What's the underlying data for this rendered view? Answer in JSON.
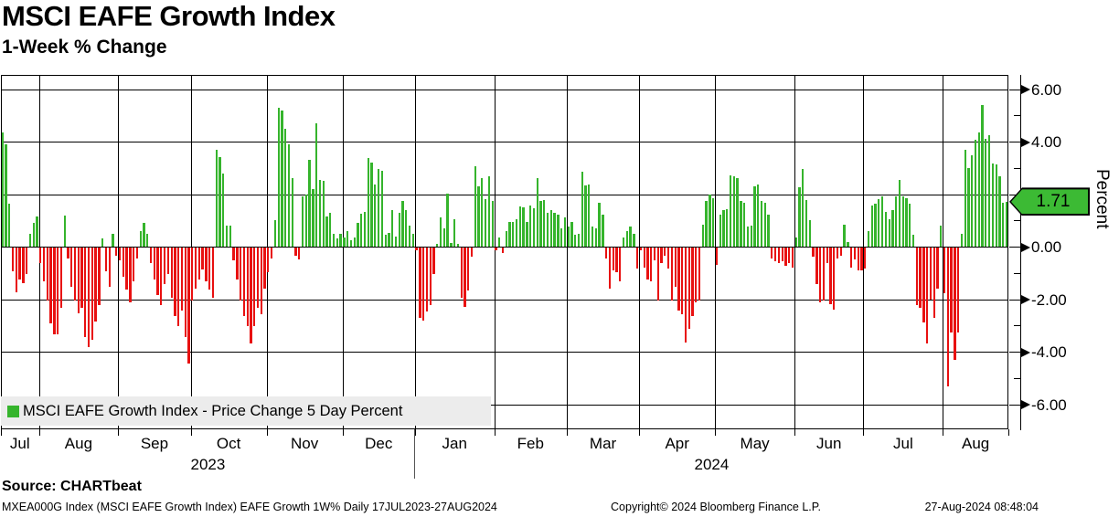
{
  "header": {
    "title": "MSCI EAFE Growth Index",
    "subtitle": "1-Week % Change"
  },
  "legend": {
    "label": "MSCI EAFE Growth Index - Price Change 5 Day Percent",
    "swatch_color": "#35b42c"
  },
  "colors": {
    "positive_bar": "#35b42c",
    "negative_bar": "#e81010",
    "grid": "#000000",
    "legend_bg": "#ececec",
    "tag_fill": "#3cba34"
  },
  "y_axis": {
    "axis_title": "Percent",
    "tick_labels": [
      "6.00",
      "4.00",
      "2.00",
      "0.00",
      "-2.00",
      "-4.00",
      "-6.00"
    ],
    "tick_values": [
      6,
      4,
      2,
      0,
      -2,
      -4,
      -6
    ],
    "minor_tick_values": [
      5,
      3,
      1,
      -1,
      -3,
      -5
    ],
    "last_value_label": "1.71"
  },
  "x_axis": {
    "year_groups": [
      {
        "label": "2023",
        "month_count": 6
      },
      {
        "label": "2024",
        "month_count": 8
      }
    ]
  },
  "footer": {
    "source": "Source: CHARTbeat",
    "left": "MXEA000G Index (MSCI EAFE Growth Index) EAFE Growth 1W%  Daily 17JUL2023-27AUG2024",
    "center": "Copyright© 2024 Bloomberg Finance L.P.",
    "right": "27-Aug-2024 08:48:04"
  },
  "chart_data": {
    "type": "bar",
    "title": "MSCI EAFE Growth Index",
    "subtitle": "1-Week % Change",
    "ylabel": "Percent",
    "ylim": [
      -6.6,
      6.6
    ],
    "grid": true,
    "legend_position": "bottom-left",
    "series_name": "MSCI EAFE Growth Index - Price Change 5 Day Percent",
    "frequency": "daily (rolling 5-day % change), 17JUL2023-27AUG2024",
    "last_value": 1.71,
    "months": [
      {
        "label": "Jul",
        "year": 2023,
        "count": 11
      },
      {
        "label": "Aug",
        "year": 2023,
        "count": 23
      },
      {
        "label": "Sep",
        "year": 2023,
        "count": 21
      },
      {
        "label": "Oct",
        "year": 2023,
        "count": 22
      },
      {
        "label": "Nov",
        "year": 2023,
        "count": 22
      },
      {
        "label": "Dec",
        "year": 2023,
        "count": 21
      },
      {
        "label": "Jan",
        "year": 2024,
        "count": 23
      },
      {
        "label": "Feb",
        "year": 2024,
        "count": 21
      },
      {
        "label": "Mar",
        "year": 2024,
        "count": 21
      },
      {
        "label": "Apr",
        "year": 2024,
        "count": 22
      },
      {
        "label": "May",
        "year": 2024,
        "count": 23
      },
      {
        "label": "Jun",
        "year": 2024,
        "count": 20
      },
      {
        "label": "Jul",
        "year": 2024,
        "count": 23
      },
      {
        "label": "Aug",
        "year": 2024,
        "count": 19
      }
    ],
    "values": [
      4.35,
      3.9,
      1.63,
      -0.9,
      -1.7,
      -1.2,
      -1.35,
      -1.0,
      0.5,
      0.9,
      1.15,
      -0.6,
      -1.3,
      -2.0,
      -2.9,
      -3.3,
      -3.3,
      -2.3,
      1.2,
      -0.4,
      -1.5,
      -2.0,
      -2.5,
      -2.3,
      -3.4,
      -3.8,
      -3.5,
      -2.8,
      -2.2,
      0.3,
      -0.9,
      -1.5,
      0.5,
      -0.3,
      -0.5,
      -1.1,
      -1.6,
      -2.1,
      -1.3,
      -0.4,
      0.6,
      0.9,
      0.5,
      -0.6,
      -1.2,
      -1.8,
      -2.2,
      -1.4,
      -1.0,
      -1.9,
      -2.6,
      -3.0,
      -2.4,
      -3.4,
      -4.4,
      -2.0,
      -1.55,
      -1.2,
      -0.85,
      -1.3,
      -1.6,
      -1.9,
      3.7,
      3.4,
      2.8,
      0.8,
      0.8,
      -0.5,
      -1.2,
      -2.0,
      -2.6,
      -3.0,
      -3.65,
      -3.0,
      -2.3,
      -2.55,
      -1.55,
      -0.95,
      -0.4,
      1.0,
      5.3,
      5.2,
      4.5,
      3.9,
      2.6,
      -0.3,
      -0.45,
      1.9,
      2.0,
      3.3,
      2.2,
      4.7,
      2.55,
      2.5,
      1.15,
      1.3,
      0.5,
      0.3,
      0.5,
      0.35,
      0.6,
      0.25,
      0.35,
      0.9,
      1.25,
      1.33,
      3.36,
      3.19,
      2.38,
      2.96,
      2.9,
      0.46,
      0.52,
      1.39,
      0.4,
      1.27,
      1.74,
      1.39,
      0.8,
      0.5,
      -0.1,
      -2.67,
      -2.78,
      -2.43,
      -2.2,
      -1.0,
      0.1,
      1.1,
      0.7,
      2.03,
      0.15,
      1.04,
      0.1,
      -1.9,
      -2.26,
      -1.62,
      -0.35,
      3.07,
      2.3,
      2.6,
      1.8,
      2.67,
      1.74,
      -0.1,
      0.35,
      -0.2,
      0.6,
      0.95,
      0.95,
      1.04,
      1.53,
      1.48,
      0.93,
      1.57,
      1.45,
      2.6,
      1.74,
      1.76,
      1.28,
      1.39,
      1.3,
      1.22,
      0.7,
      1.1,
      0.75,
      0.93,
      0.45,
      0.5,
      2.84,
      2.32,
      2.38,
      0.75,
      0.7,
      1.68,
      1.22,
      -0.4,
      -1.55,
      -0.87,
      -0.93,
      -1.28,
      0.35,
      0.6,
      0.75,
      0.5,
      -0.8,
      -0.1,
      -0.75,
      -1.2,
      -1.3,
      -0.5,
      -2.0,
      -0.6,
      -0.3,
      -0.8,
      -2.0,
      -1.5,
      -2.4,
      -2.55,
      -3.6,
      -3.1,
      -2.6,
      -2.1,
      -2.0,
      0.85,
      1.74,
      2.0,
      1.85,
      -0.65,
      1.22,
      1.39,
      1.41,
      2.72,
      2.67,
      2.6,
      1.74,
      1.68,
      0.75,
      0.8,
      2.3,
      2.38,
      1.74,
      1.68,
      1.22,
      -0.4,
      -0.52,
      -0.58,
      -0.52,
      -0.7,
      -0.58,
      -0.75,
      0.35,
      2.26,
      2.96,
      1.76,
      1.0,
      -0.35,
      -1.4,
      -2.1,
      -2.03,
      -0.58,
      -2.14,
      -2.38,
      -0.4,
      -0.3,
      0.83,
      0.17,
      -0.75,
      -0.46,
      -0.87,
      -0.87,
      -0.8,
      0.58,
      1.57,
      1.62,
      1.82,
      1.91,
      1.33,
      1.04,
      1.39,
      1.91,
      2.55,
      1.91,
      1.86,
      1.65,
      0.45,
      -2.2,
      -2.3,
      -2.84,
      -3.65,
      -1.97,
      -2.67,
      -1.57,
      0.8,
      -1.74,
      -5.28,
      -3.24,
      -4.28,
      -3.24,
      0.5,
      3.68,
      3.0,
      3.48,
      4.06,
      4.35,
      5.39,
      4.12,
      4.23,
      3.16,
      3.13,
      2.67,
      1.68,
      1.71
    ]
  }
}
